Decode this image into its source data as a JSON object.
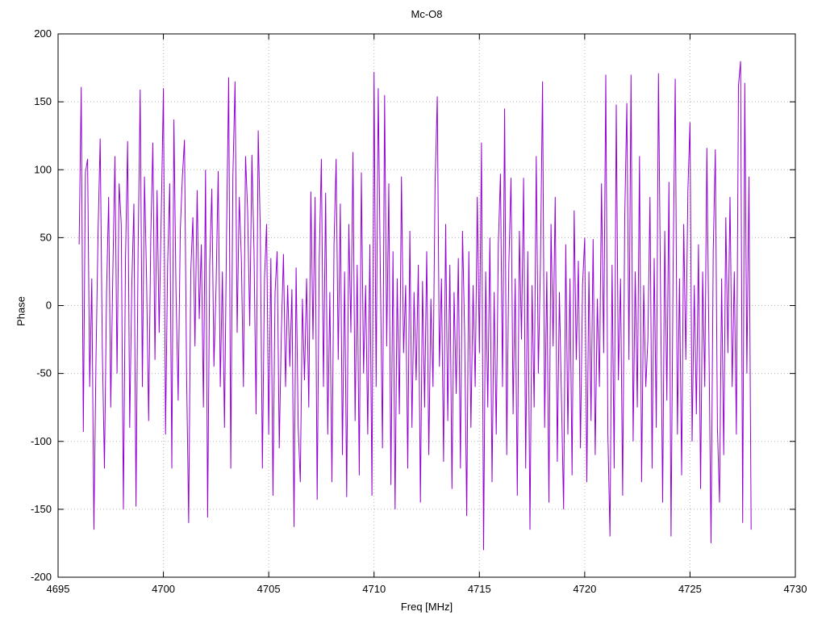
{
  "chart_data": {
    "type": "line",
    "title": "Mc-O8",
    "xlabel": "Freq [MHz]",
    "ylabel": "Phase",
    "xlim": [
      4695,
      4730
    ],
    "ylim": [
      -200,
      200
    ],
    "xticks": [
      4695,
      4700,
      4705,
      4710,
      4715,
      4720,
      4725,
      4730
    ],
    "yticks": [
      -200,
      -150,
      -100,
      -50,
      0,
      50,
      100,
      150,
      200
    ],
    "grid": "dotted",
    "legend": "none",
    "line_color": "#9400d3",
    "x_start": 4696.0,
    "x_step": 0.1,
    "values": [
      45,
      161,
      -93,
      98,
      108,
      -60,
      20,
      -165,
      -40,
      55,
      123,
      -30,
      -120,
      10,
      80,
      -75,
      25,
      110,
      -50,
      90,
      60,
      -150,
      35,
      121,
      -90,
      15,
      75,
      -148,
      40,
      159,
      -60,
      95,
      20,
      -85,
      50,
      120,
      -40,
      85,
      -20,
      70,
      160,
      -95,
      30,
      90,
      -120,
      137,
      10,
      -70,
      55,
      95,
      122,
      -50,
      -160,
      25,
      65,
      -30,
      85,
      -10,
      45,
      -75,
      100,
      -156,
      30,
      86,
      -45,
      15,
      99,
      -60,
      25,
      -90,
      55,
      168,
      -120,
      95,
      165,
      -20,
      80,
      35,
      -60,
      110,
      70,
      -15,
      111,
      40,
      -80,
      129,
      55,
      -120,
      20,
      60,
      -95,
      35,
      -140,
      10,
      40,
      -105,
      -20,
      38,
      -60,
      15,
      -45,
      12,
      -163,
      28,
      -90,
      -130,
      5,
      -55,
      20,
      -75,
      84,
      -25,
      80,
      -143,
      35,
      108,
      -60,
      83,
      -95,
      10,
      -130,
      45,
      108,
      -40,
      75,
      -110,
      25,
      -141,
      60,
      -20,
      113,
      -85,
      30,
      -125,
      98,
      -50,
      15,
      -95,
      45,
      -140,
      172,
      -60,
      160,
      25,
      -105,
      155,
      -30,
      90,
      -132,
      40,
      -150,
      20,
      -80,
      95,
      -35,
      15,
      -120,
      55,
      -90,
      10,
      -55,
      30,
      -145,
      18,
      -75,
      40,
      -110,
      5,
      -60,
      90,
      154,
      -45,
      20,
      -115,
      60,
      -85,
      30,
      -135,
      10,
      -65,
      35,
      -120,
      55,
      -20,
      -155,
      40,
      -90,
      15,
      -60,
      80,
      -35,
      120,
      -180,
      25,
      -75,
      50,
      -130,
      10,
      -95,
      45,
      97,
      -60,
      145,
      -110,
      30,
      94,
      -80,
      20,
      -140,
      55,
      -25,
      94,
      -120,
      40,
      -165,
      15,
      -75,
      110,
      -50,
      30,
      165,
      -90,
      25,
      -145,
      60,
      -30,
      80,
      -115,
      10,
      -70,
      -150,
      45,
      -95,
      20,
      -125,
      70,
      -40,
      33,
      -105,
      15,
      50,
      -130,
      25,
      -85,
      49,
      -110,
      5,
      -60,
      90,
      -35,
      170,
      -95,
      -170,
      30,
      -120,
      148,
      -55,
      20,
      -140,
      65,
      149,
      -40,
      170,
      -100,
      25,
      -75,
      110,
      -130,
      15,
      -60,
      -25,
      80,
      -120,
      35,
      -90,
      171,
      10,
      -145,
      55,
      -70,
      91,
      -170,
      30,
      167,
      -95,
      20,
      -125,
      60,
      -40,
      85,
      135,
      -100,
      15,
      -80,
      45,
      -135,
      25,
      -60,
      116,
      -30,
      -175,
      40,
      115,
      -90,
      -145,
      20,
      -110,
      65,
      -35,
      80,
      -60,
      25,
      -95,
      162,
      180,
      -160,
      164,
      -50,
      95,
      -165
    ]
  }
}
